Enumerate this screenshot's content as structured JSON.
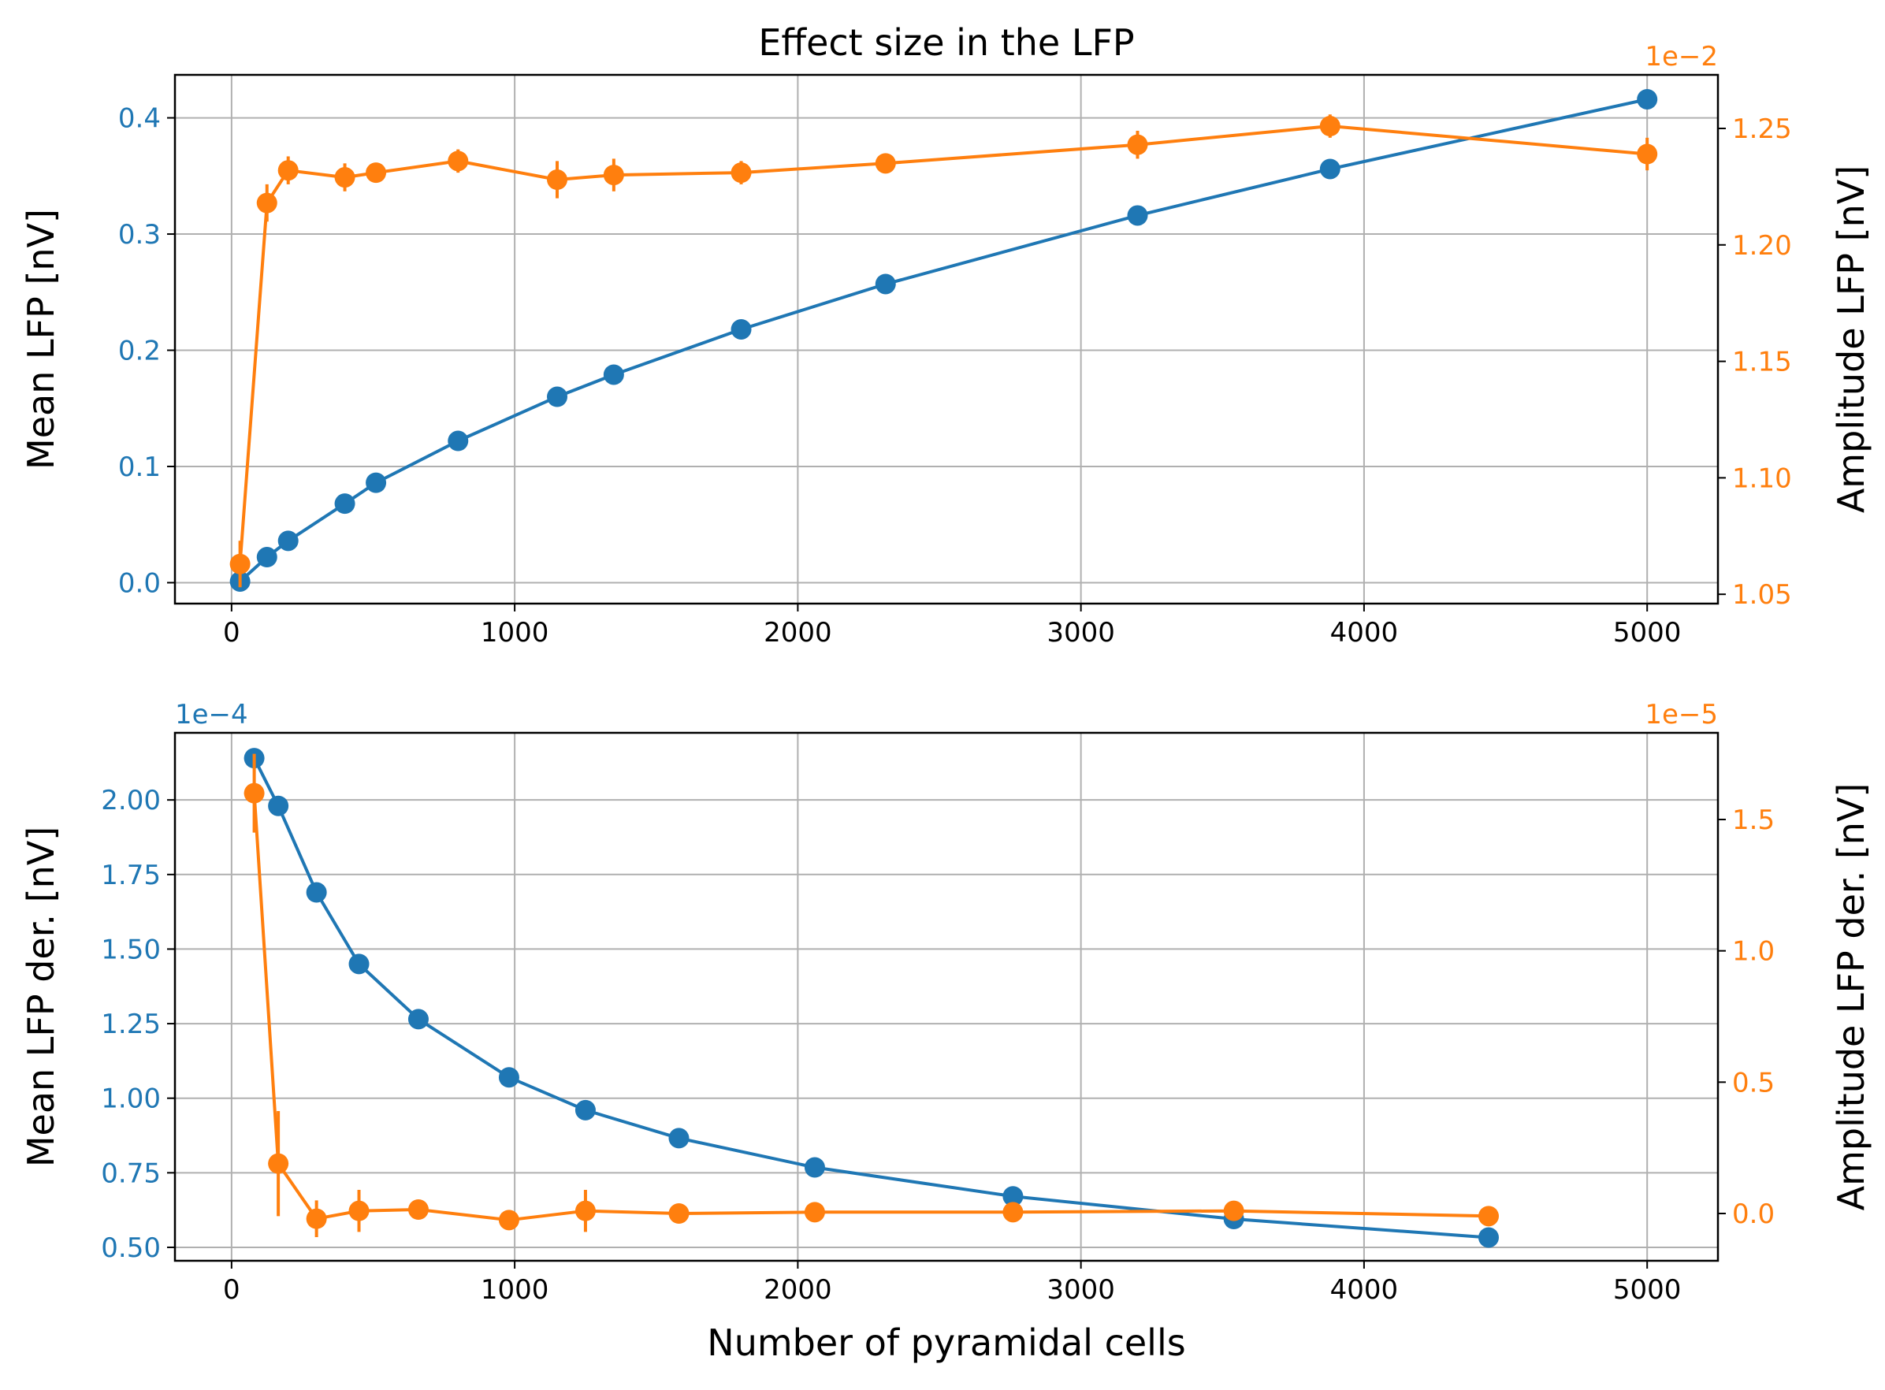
{
  "chart_data": [
    {
      "type": "line",
      "title": "Effect size in the LFP",
      "xlabel": "",
      "xlim": [
        -200,
        5250
      ],
      "xticks": [
        0,
        1000,
        2000,
        3000,
        4000,
        5000
      ],
      "grid": true,
      "left_axis": {
        "label": "Mean LFP [nV]",
        "color": "#1f77b4",
        "ylim": [
          -0.018,
          0.437
        ],
        "ticks": [
          0.0,
          0.1,
          0.2,
          0.3,
          0.4
        ],
        "tick_labels": [
          "0.0",
          "0.1",
          "0.2",
          "0.3",
          "0.4"
        ],
        "offset_text": ""
      },
      "right_axis": {
        "label": "Amplitude LFP [nV]",
        "color": "#ff7f0e",
        "ylim": [
          1.046,
          1.273
        ],
        "ticks": [
          1.05,
          1.1,
          1.15,
          1.2,
          1.25
        ],
        "tick_labels": [
          "1.05",
          "1.10",
          "1.15",
          "1.20",
          "1.25"
        ],
        "offset_text": "1e−2"
      },
      "series": [
        {
          "axis": "left",
          "color": "#1f77b4",
          "x": [
            30,
            125,
            200,
            400,
            510,
            800,
            1150,
            1350,
            1800,
            2310,
            3200,
            3880,
            5000
          ],
          "y": [
            0.001,
            0.022,
            0.036,
            0.068,
            0.086,
            0.122,
            0.16,
            0.179,
            0.218,
            0.257,
            0.316,
            0.356,
            0.416
          ],
          "err": []
        },
        {
          "axis": "right",
          "color": "#ff7f0e",
          "x": [
            30,
            125,
            200,
            400,
            510,
            800,
            1150,
            1350,
            1800,
            2310,
            3200,
            3880,
            5000
          ],
          "y": [
            1.063,
            1.218,
            1.232,
            1.229,
            1.231,
            1.236,
            1.228,
            1.23,
            1.231,
            1.235,
            1.243,
            1.251,
            1.239
          ],
          "err": [
            0.01,
            0.008,
            0.006,
            0.006,
            0.004,
            0.005,
            0.008,
            0.007,
            0.005,
            0.003,
            0.006,
            0.005,
            0.007
          ]
        }
      ]
    },
    {
      "type": "line",
      "title": "",
      "xlabel": "Number of pyramidal cells",
      "xlim": [
        -200,
        5250
      ],
      "xticks": [
        0,
        1000,
        2000,
        3000,
        4000,
        5000
      ],
      "grid": true,
      "left_axis": {
        "label": "Mean LFP der. [nV]",
        "color": "#1f77b4",
        "ylim": [
          0.455,
          2.225
        ],
        "ticks": [
          0.5,
          0.75,
          1.0,
          1.25,
          1.5,
          1.75,
          2.0
        ],
        "tick_labels": [
          "0.50",
          "0.75",
          "1.00",
          "1.25",
          "1.50",
          "1.75",
          "2.00"
        ],
        "offset_text": "1e−4"
      },
      "right_axis": {
        "label": "Amplitude LFP der. [nV]",
        "color": "#ff7f0e",
        "ylim": [
          -0.18,
          1.83
        ],
        "ticks": [
          0.0,
          0.5,
          1.0,
          1.5
        ],
        "tick_labels": [
          "0.0",
          "0.5",
          "1.0",
          "1.5"
        ],
        "offset_text": "1e−5"
      },
      "series": [
        {
          "axis": "left",
          "color": "#1f77b4",
          "x": [
            80,
            165,
            300,
            450,
            660,
            980,
            1250,
            1580,
            2060,
            2760,
            3540,
            4440
          ],
          "y": [
            2.14,
            1.98,
            1.69,
            1.45,
            1.265,
            1.07,
            0.96,
            0.866,
            0.768,
            0.671,
            0.595,
            0.533
          ],
          "err": []
        },
        {
          "axis": "right",
          "color": "#ff7f0e",
          "x": [
            80,
            165,
            300,
            450,
            660,
            980,
            1250,
            1580,
            2060,
            2760,
            3540,
            4440
          ],
          "y": [
            1.6,
            0.19,
            -0.02,
            0.01,
            0.015,
            -0.025,
            0.01,
            0.0,
            0.005,
            0.005,
            0.01,
            -0.01
          ],
          "err": [
            0.15,
            0.2,
            0.07,
            0.08,
            0.02,
            0.03,
            0.08,
            0.02,
            0.02,
            0.02,
            0.03,
            0.02
          ]
        }
      ]
    }
  ]
}
